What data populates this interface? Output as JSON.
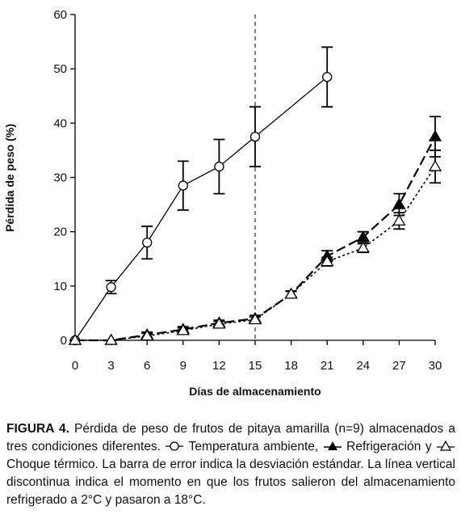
{
  "chart_data": {
    "type": "line",
    "xlabel": "Días de almacenamiento",
    "ylabel": "Pérdida de peso (%)",
    "xlim": [
      0,
      30
    ],
    "xticks": [
      0,
      3,
      6,
      9,
      12,
      15,
      18,
      21,
      24,
      27,
      30
    ],
    "ylim": [
      0,
      60
    ],
    "yticks": [
      0,
      10,
      20,
      30,
      40,
      50,
      60
    ],
    "vline": 15,
    "series": [
      {
        "name": "Temperatura ambiente",
        "color": "#000000",
        "marker": "circle",
        "dash": "solid",
        "x": [
          0,
          3,
          6,
          9,
          12,
          15,
          21
        ],
        "values": [
          0,
          9.8,
          18,
          28.5,
          32,
          37.5,
          48.5
        ],
        "errors": [
          0,
          1.2,
          3,
          4.5,
          5,
          5.5,
          5.5
        ]
      },
      {
        "name": "Refrigeración",
        "color": "#000000",
        "marker": "triangle-filled",
        "dash": "dashed",
        "x": [
          0,
          3,
          6,
          9,
          12,
          15,
          18,
          21,
          24,
          27,
          30
        ],
        "values": [
          0,
          0,
          1,
          2,
          3.2,
          4,
          8.5,
          15.5,
          19,
          25,
          37.5
        ],
        "errors": [
          0,
          0,
          0.5,
          0.5,
          0.5,
          0.6,
          0.6,
          1,
          1,
          2,
          3.7
        ]
      },
      {
        "name": "Choque térmico",
        "color": "#000000",
        "marker": "triangle-open",
        "dash": "dotted",
        "x": [
          0,
          3,
          6,
          9,
          12,
          15,
          18,
          21,
          24,
          27,
          30
        ],
        "values": [
          0,
          0,
          0.8,
          1.8,
          3,
          3.8,
          8.5,
          14.5,
          17,
          22,
          32
        ],
        "errors": [
          0,
          0,
          0.5,
          0.5,
          0.5,
          0.5,
          0.5,
          0.8,
          0.8,
          1.5,
          3
        ]
      }
    ]
  },
  "caption": {
    "label": "FIGURA 4.",
    "intro": "Pérdida de peso de frutos de pitaya amarilla (n=9) almacenados a tres condiciones diferentes.",
    "sep1": ",",
    "sep2": "y",
    "outro": ". La barra de error indica la desviación estándar. La línea vertical discontinua indica el momento en que los frutos salieron del almacenamiento refrigerado a 2°C y pasaron a 18°C."
  }
}
